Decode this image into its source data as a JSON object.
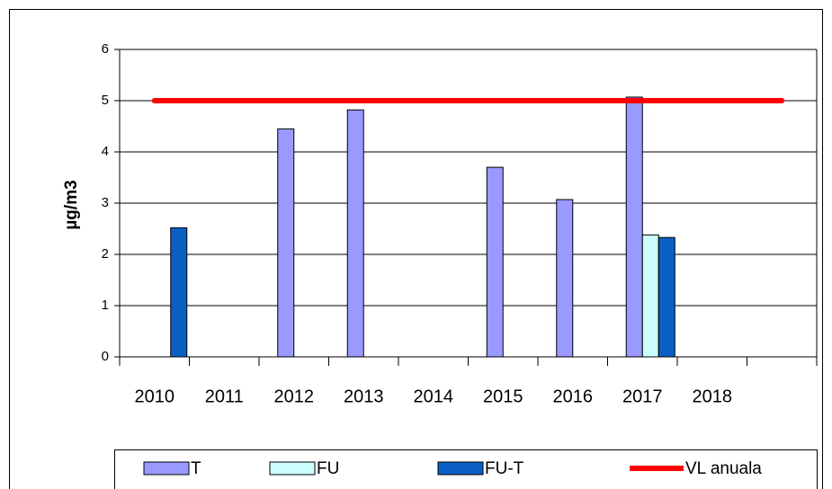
{
  "chart_data": {
    "type": "bar",
    "ylabel": "µg/m3",
    "categories": [
      "2010",
      "2011",
      "2012",
      "2013",
      "2014",
      "2015",
      "2016",
      "2017",
      "2018",
      null
    ],
    "series": [
      {
        "name": "T",
        "color": "#9999ff",
        "values": [
          null,
          null,
          4.45,
          4.82,
          null,
          3.7,
          3.07,
          5.07,
          null,
          null
        ]
      },
      {
        "name": "FU",
        "color": "#ccffff",
        "values": [
          null,
          null,
          null,
          null,
          null,
          null,
          null,
          2.38,
          null,
          null
        ]
      },
      {
        "name": "FU-T",
        "color": "#0a5fc4",
        "values": [
          2.52,
          null,
          null,
          null,
          null,
          null,
          null,
          2.33,
          null,
          null
        ]
      },
      {
        "name": "VL anuala",
        "color": "#ff0000",
        "type": "line",
        "values": [
          5,
          5,
          5,
          5,
          5,
          5,
          5,
          5,
          5,
          5
        ]
      }
    ],
    "ylim": [
      0,
      6
    ],
    "yticks": [
      0,
      1,
      2,
      3,
      4,
      5,
      6
    ],
    "grid": true,
    "legend": "bottom"
  }
}
